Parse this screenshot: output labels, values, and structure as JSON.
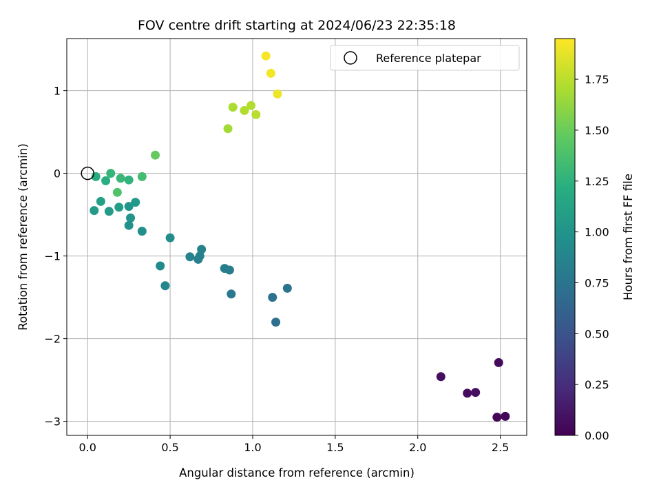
{
  "chart_data": {
    "type": "scatter",
    "title": "FOV centre drift starting at 2024/06/23 22:35:18",
    "xlabel": "Angular distance from reference (arcmin)",
    "ylabel": "Rotation from reference (arcmin)",
    "xlim": [
      -0.126,
      2.66
    ],
    "ylim": [
      -3.17,
      1.63
    ],
    "xticks": [
      0.0,
      0.5,
      1.0,
      1.5,
      2.0,
      2.5
    ],
    "xtick_labels": [
      "0.0",
      "0.5",
      "1.0",
      "1.5",
      "2.0",
      "2.5"
    ],
    "yticks": [
      -3,
      -2,
      -1,
      0,
      1
    ],
    "ytick_labels": [
      "−3",
      "−2",
      "−1",
      "0",
      "1"
    ],
    "grid": true,
    "colormap": "viridis",
    "colorbar": {
      "label": "Hours from first FF file",
      "range": [
        0.0,
        1.95
      ],
      "ticks": [
        0.0,
        0.25,
        0.5,
        0.75,
        1.0,
        1.25,
        1.5,
        1.75
      ],
      "tick_labels": [
        "0.00",
        "0.25",
        "0.50",
        "0.75",
        "1.00",
        "1.25",
        "1.50",
        "1.75"
      ]
    },
    "legend": {
      "placement": "top-right",
      "label": "Reference platepar"
    },
    "reference_point": {
      "x": 0.0,
      "y": 0.0
    },
    "points": [
      {
        "x": 2.49,
        "y": -2.29,
        "hours": 0.05
      },
      {
        "x": 2.14,
        "y": -2.46,
        "hours": 0.08
      },
      {
        "x": 2.3,
        "y": -2.66,
        "hours": 0.06
      },
      {
        "x": 2.35,
        "y": -2.65,
        "hours": 0.07
      },
      {
        "x": 2.48,
        "y": -2.95,
        "hours": 0.02
      },
      {
        "x": 2.53,
        "y": -2.94,
        "hours": 0.03
      },
      {
        "x": 1.14,
        "y": -1.8,
        "hours": 0.7
      },
      {
        "x": 1.12,
        "y": -1.5,
        "hours": 0.72
      },
      {
        "x": 1.21,
        "y": -1.39,
        "hours": 0.74
      },
      {
        "x": 0.87,
        "y": -1.46,
        "hours": 0.78
      },
      {
        "x": 0.86,
        "y": -1.17,
        "hours": 0.8
      },
      {
        "x": 0.83,
        "y": -1.15,
        "hours": 0.82
      },
      {
        "x": 0.69,
        "y": -0.92,
        "hours": 0.86
      },
      {
        "x": 0.68,
        "y": -1.0,
        "hours": 0.85
      },
      {
        "x": 0.67,
        "y": -1.04,
        "hours": 0.84
      },
      {
        "x": 0.62,
        "y": -1.01,
        "hours": 0.86
      },
      {
        "x": 0.47,
        "y": -1.36,
        "hours": 0.9
      },
      {
        "x": 0.44,
        "y": -1.12,
        "hours": 0.92
      },
      {
        "x": 0.5,
        "y": -0.78,
        "hours": 0.94
      },
      {
        "x": 0.33,
        "y": -0.7,
        "hours": 0.96
      },
      {
        "x": 0.25,
        "y": -0.63,
        "hours": 0.98
      },
      {
        "x": 0.26,
        "y": -0.54,
        "hours": 1.0
      },
      {
        "x": 0.25,
        "y": -0.4,
        "hours": 1.02
      },
      {
        "x": 0.29,
        "y": -0.35,
        "hours": 1.04
      },
      {
        "x": 0.19,
        "y": -0.41,
        "hours": 1.08
      },
      {
        "x": 0.13,
        "y": -0.46,
        "hours": 1.06
      },
      {
        "x": 0.04,
        "y": -0.45,
        "hours": 1.06
      },
      {
        "x": 0.08,
        "y": -0.34,
        "hours": 1.1
      },
      {
        "x": 0.18,
        "y": -0.23,
        "hours": 1.4
      },
      {
        "x": 0.05,
        "y": -0.04,
        "hours": 1.2
      },
      {
        "x": 0.11,
        "y": -0.09,
        "hours": 1.22
      },
      {
        "x": 0.14,
        "y": 0.0,
        "hours": 1.28
      },
      {
        "x": 0.2,
        "y": -0.06,
        "hours": 1.3
      },
      {
        "x": 0.25,
        "y": -0.08,
        "hours": 1.26
      },
      {
        "x": 0.33,
        "y": -0.04,
        "hours": 1.35
      },
      {
        "x": 0.41,
        "y": 0.22,
        "hours": 1.48
      },
      {
        "x": 0.85,
        "y": 0.54,
        "hours": 1.68
      },
      {
        "x": 0.88,
        "y": 0.8,
        "hours": 1.7
      },
      {
        "x": 0.95,
        "y": 0.76,
        "hours": 1.72
      },
      {
        "x": 0.99,
        "y": 0.82,
        "hours": 1.72
      },
      {
        "x": 1.02,
        "y": 0.71,
        "hours": 1.74
      },
      {
        "x": 1.08,
        "y": 1.42,
        "hours": 1.93
      },
      {
        "x": 1.11,
        "y": 1.21,
        "hours": 1.92
      },
      {
        "x": 1.15,
        "y": 0.96,
        "hours": 1.9
      }
    ]
  }
}
